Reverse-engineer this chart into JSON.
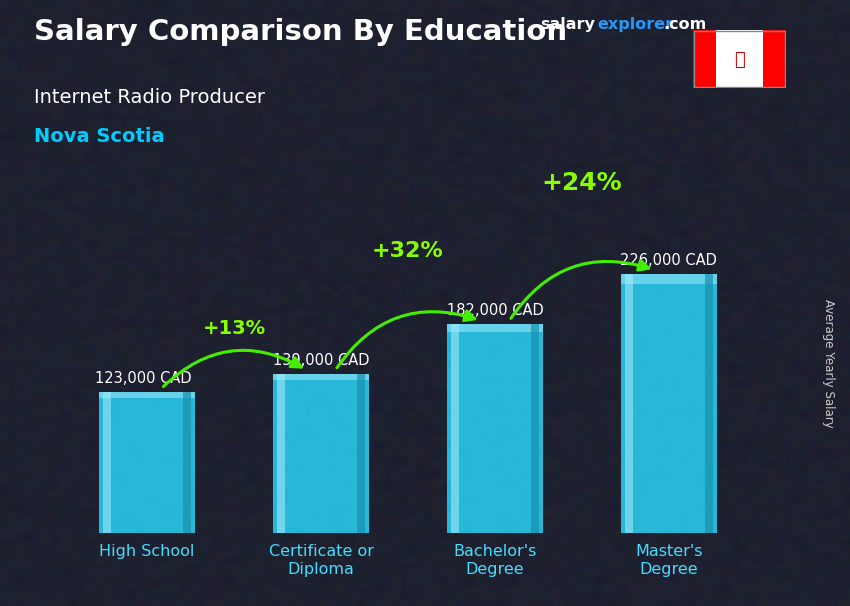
{
  "title_main": "Salary Comparison By Education",
  "title_sub": "Internet Radio Producer",
  "title_region": "Nova Scotia",
  "ylabel": "Average Yearly Salary",
  "categories": [
    "High School",
    "Certificate or\nDiploma",
    "Bachelor's\nDegree",
    "Master's\nDegree"
  ],
  "values": [
    123000,
    139000,
    182000,
    226000
  ],
  "labels": [
    "123,000 CAD",
    "139,000 CAD",
    "182,000 CAD",
    "226,000 CAD"
  ],
  "pct_changes": [
    "+13%",
    "+32%",
    "+24%"
  ],
  "bar_color_main": "#29c5e6",
  "bar_color_light": "#55ddff",
  "bar_color_dark": "#1a90b0",
  "bar_color_side": "#0e6080",
  "bg_color": "#1a1e2e",
  "title_color": "#ffffff",
  "subtitle_color": "#ffffff",
  "region_color": "#00ccff",
  "label_color": "#ffffff",
  "pct_color": "#88ff00",
  "arrow_color": "#44ee00",
  "xlabel_color": "#44ddff",
  "brand_salary_color": "#ffffff",
  "brand_explorer_color": "#2299ff",
  "brand_com_color": "#ffffff",
  "ylim": [
    0,
    290000
  ],
  "bar_width": 0.55,
  "fig_width": 8.5,
  "fig_height": 6.06,
  "dpi": 100
}
